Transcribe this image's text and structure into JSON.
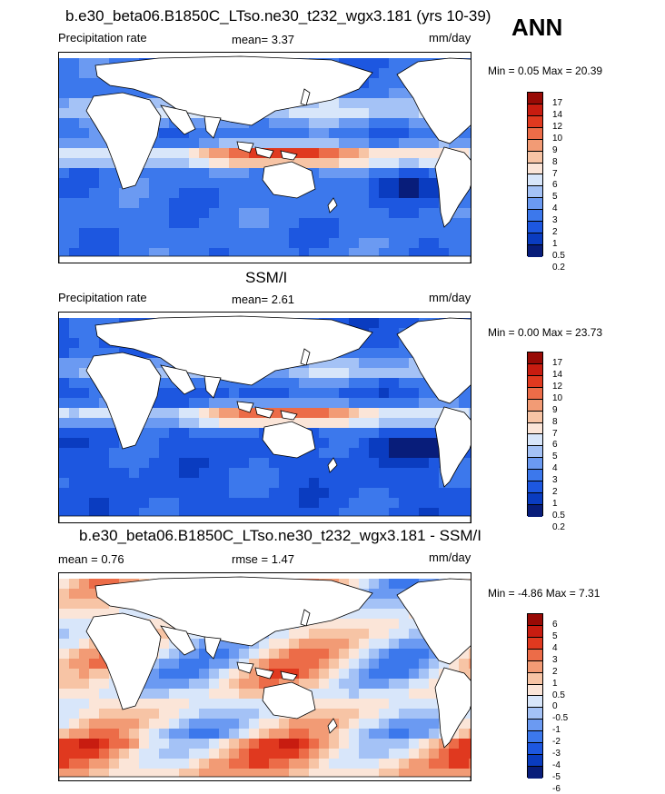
{
  "annual_label": "ANN",
  "colors": {
    "precip": [
      "#081d7a",
      "#0a3cc0",
      "#1d57e0",
      "#3c78ec",
      "#6b9af2",
      "#a4c2f6",
      "#d8e6fa",
      "#fbe5d8",
      "#f7c4a5",
      "#f29b75",
      "#ec6c48",
      "#e0391f",
      "#c81c10",
      "#980a05"
    ],
    "diff": [
      "#081d7a",
      "#0a3cc0",
      "#1d57e0",
      "#3c78ec",
      "#6b9af2",
      "#a4c2f6",
      "#d8e6fa",
      "#fbe5d8",
      "#f7c4a5",
      "#f29b75",
      "#ec6c48",
      "#e0391f",
      "#c81c10",
      "#980a05"
    ]
  },
  "panels": [
    {
      "title": "b.e30_beta06.B1850C_LTso.ne30_t232_wgx3.181 (yrs 10-39)",
      "left_label": "Precipitation rate",
      "center_label": "mean=   3.37",
      "units": "mm/day",
      "minmax": "Min =   0.05 Max =  20.39"
    },
    {
      "title": "SSM/I",
      "left_label": "Precipitation rate",
      "center_label": "mean=   2.61",
      "units": "mm/day",
      "minmax": "Min =   0.00 Max =  23.73"
    },
    {
      "title": "b.e30_beta06.B1850C_LTso.ne30_t232_wgx3.181 - SSM/I",
      "left_label": "mean =   0.76",
      "center_label": "rmse =   1.47",
      "units": "mm/day",
      "minmax": "Min =  -4.86 Max =   7.31"
    }
  ],
  "chart_data": [
    {
      "type": "heatmap",
      "title": "b.e30_beta06.B1850C_LTso.ne30_t232_wgx3.181 (yrs 10-39)",
      "variable": "Precipitation rate",
      "units": "mm/day",
      "mean": 3.37,
      "min": 0.05,
      "max": 20.39,
      "colorbar_levels": [
        "17",
        "14",
        "12",
        "10",
        "9",
        "8",
        "7",
        "6",
        "5",
        "4",
        "3",
        "2",
        "1",
        "0.5",
        "0.2"
      ]
    },
    {
      "type": "heatmap",
      "title": "SSM/I",
      "variable": "Precipitation rate",
      "units": "mm/day",
      "mean": 2.61,
      "min": 0.0,
      "max": 23.73,
      "colorbar_levels": [
        "17",
        "14",
        "12",
        "10",
        "9",
        "8",
        "7",
        "6",
        "5",
        "4",
        "3",
        "2",
        "1",
        "0.5",
        "0.2"
      ]
    },
    {
      "type": "heatmap",
      "title": "b.e30_beta06.B1850C_LTso.ne30_t232_wgx3.181 - SSM/I",
      "units": "mm/day",
      "mean": 0.76,
      "rmse": 1.47,
      "min": -4.86,
      "max": 7.31,
      "colorbar_levels": [
        "6",
        "5",
        "4",
        "3",
        "2",
        "1",
        "0.5",
        "0",
        "-0.5",
        "-1",
        "-2",
        "-3",
        "-4",
        "-5",
        "-6"
      ]
    }
  ]
}
